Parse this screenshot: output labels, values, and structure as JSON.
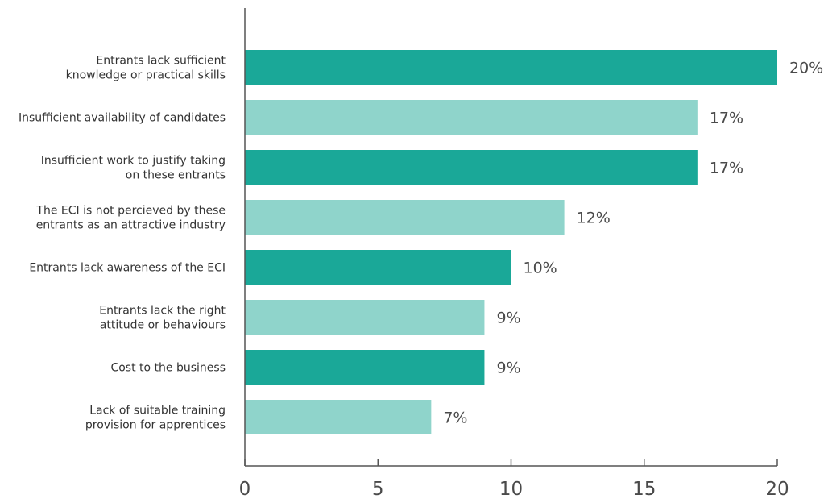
{
  "chart_data": {
    "type": "bar",
    "orientation": "horizontal",
    "categories": [
      [
        "Entrants lack sufficient",
        "knowledge or practical skills"
      ],
      [
        "Insufficient availability of candidates"
      ],
      [
        "Insufficient work to justify taking",
        "on these entrants"
      ],
      [
        "The ECI is not percieved by these",
        "entrants as an attractive industry"
      ],
      [
        "Entrants lack awareness of the ECI"
      ],
      [
        "Entrants lack the right",
        "attitude or behaviours"
      ],
      [
        "Cost to the business"
      ],
      [
        "Lack of suitable training",
        "provision for apprentices"
      ]
    ],
    "values": [
      20,
      17,
      17,
      12,
      10,
      9,
      9,
      7
    ],
    "value_labels": [
      "20%",
      "17%",
      "17%",
      "12%",
      "10%",
      "9%",
      "9%",
      "7%"
    ],
    "bar_colors": [
      "#1aa898",
      "#8fd4cb",
      "#1aa898",
      "#8fd4cb",
      "#1aa898",
      "#8fd4cb",
      "#1aa898",
      "#8fd4cb"
    ],
    "xlim": [
      0,
      20
    ],
    "x_ticks": [
      "0",
      "5",
      "10",
      "15",
      "20"
    ],
    "x_tick_values": [
      0,
      5,
      10,
      15,
      20
    ],
    "grid": false,
    "title": "",
    "xlabel": "",
    "ylabel": ""
  },
  "colors": {
    "dark_teal": "#1aa898",
    "light_teal": "#8fd4cb",
    "axis": "#555555"
  }
}
